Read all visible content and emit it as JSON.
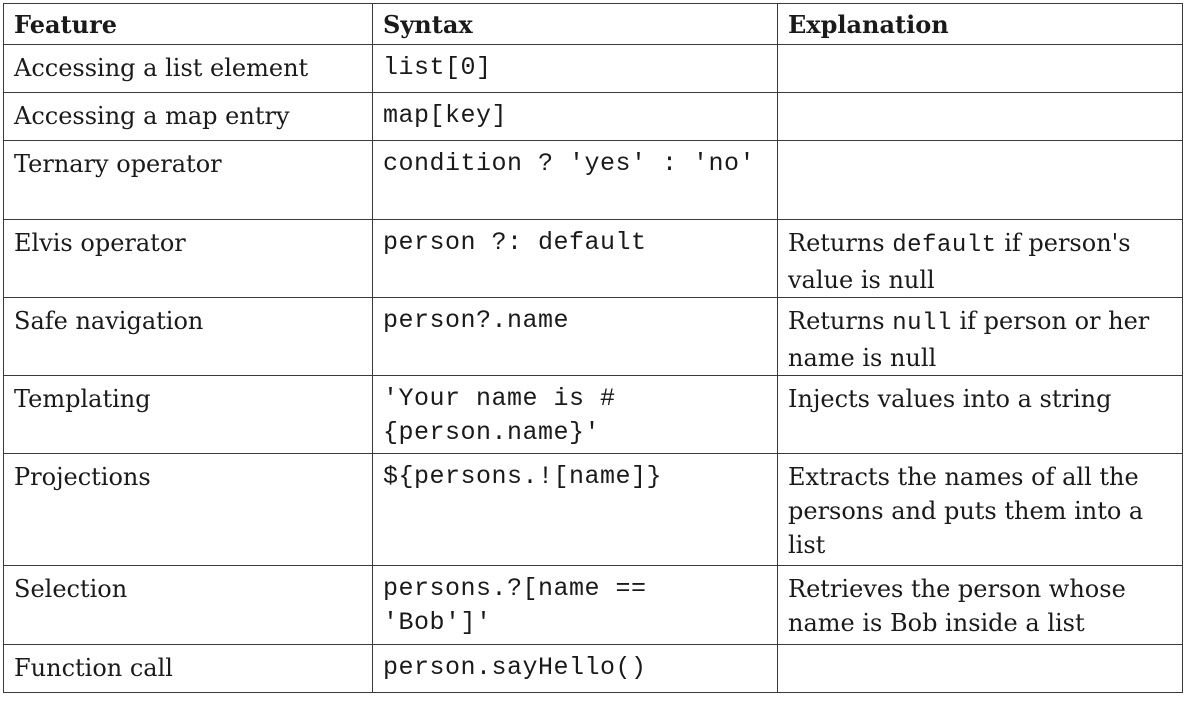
{
  "headers": {
    "feature": "Feature",
    "syntax": "Syntax",
    "explanation": "Explanation"
  },
  "rows": [
    {
      "feature": "Accessing a list element",
      "syntax": "list[0]",
      "explanation": {
        "pre": "",
        "code": "",
        "post": ""
      }
    },
    {
      "feature": "Accessing a map entry",
      "syntax": "map[key]",
      "explanation": {
        "pre": "",
        "code": "",
        "post": ""
      }
    },
    {
      "feature": "Ternary operator",
      "syntax": "condition ? 'yes' : 'no'",
      "explanation": {
        "pre": "",
        "code": "",
        "post": ""
      }
    },
    {
      "feature": "Elvis operator",
      "syntax": "person ?: default",
      "explanation": {
        "pre": "Returns ",
        "code": "default",
        "post": " if person's value is null"
      }
    },
    {
      "feature": "Safe navigation",
      "syntax": "person?.name",
      "explanation": {
        "pre": "Returns ",
        "code": "null",
        "post": " if person or her name is null"
      }
    },
    {
      "feature": "Templating",
      "syntax": "'Your name is #{person.name}'",
      "explanation": {
        "pre": "Injects values into a string",
        "code": "",
        "post": ""
      }
    },
    {
      "feature": "Projections",
      "syntax": "${persons.![name]}",
      "explanation": {
        "pre": "Extracts the names of all the persons and puts them into a list",
        "code": "",
        "post": ""
      }
    },
    {
      "feature": "Selection",
      "syntax": "persons.?[name == 'Bob']'",
      "explanation": {
        "pre": "Retrieves the person whose name is Bob inside a list",
        "code": "",
        "post": ""
      }
    },
    {
      "feature": "Function call",
      "syntax": "person.sayHello()",
      "explanation": {
        "pre": "",
        "code": "",
        "post": ""
      }
    }
  ]
}
